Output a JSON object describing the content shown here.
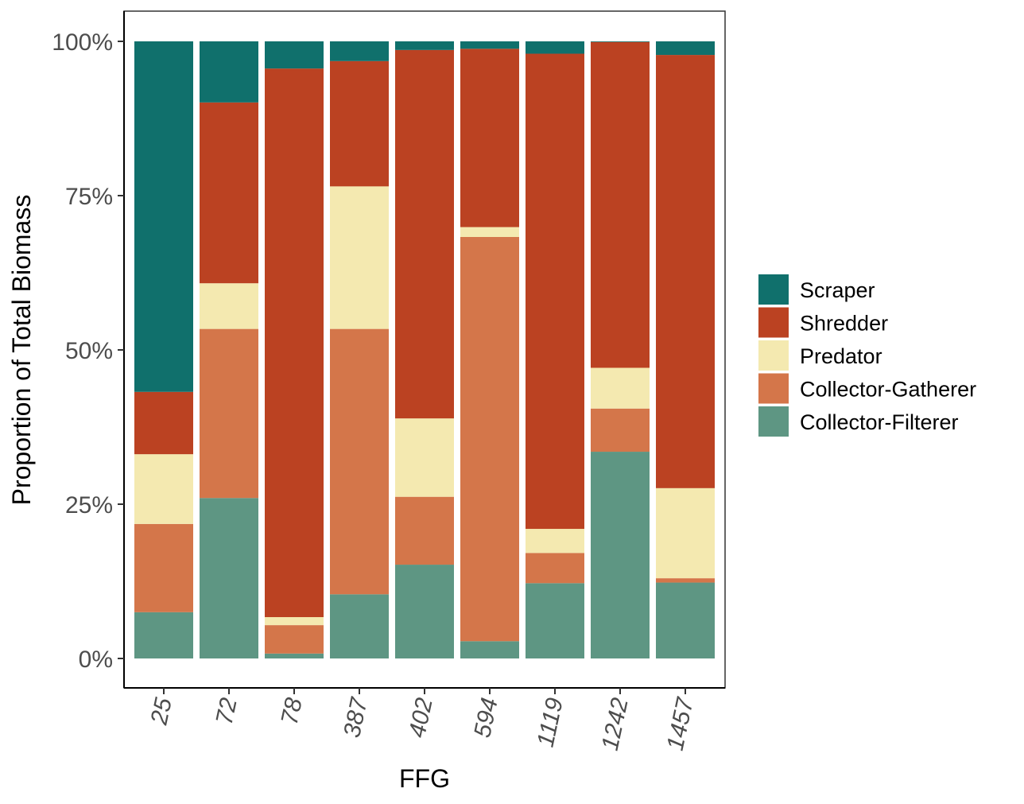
{
  "chart_data": {
    "type": "bar",
    "stacked": "percent",
    "xlabel": "FFG",
    "ylabel": "Proportion of Total Biomass",
    "categories": [
      "25",
      "72",
      "78",
      "387",
      "402",
      "594",
      "1119",
      "1242",
      "1457"
    ],
    "yticks": [
      "0%",
      "25%",
      "50%",
      "75%",
      "100%"
    ],
    "ylim": [
      0,
      1
    ],
    "grid": false,
    "legend_position": "right",
    "series": [
      {
        "name": "Collector-Filterer",
        "color": "#5e9683",
        "values": [
          0.075,
          0.26,
          0.008,
          0.104,
          0.152,
          0.028,
          0.122,
          0.335,
          0.123
        ]
      },
      {
        "name": "Collector-Gatherer",
        "color": "#d4764a",
        "values": [
          0.143,
          0.274,
          0.046,
          0.43,
          0.11,
          0.655,
          0.049,
          0.07,
          0.007
        ]
      },
      {
        "name": "Predator",
        "color": "#f4e9b0",
        "values": [
          0.113,
          0.074,
          0.013,
          0.231,
          0.127,
          0.016,
          0.039,
          0.066,
          0.146
        ]
      },
      {
        "name": "Shredder",
        "color": "#bb4222",
        "values": [
          0.101,
          0.293,
          0.889,
          0.203,
          0.597,
          0.289,
          0.77,
          0.528,
          0.702
        ]
      },
      {
        "name": "Scraper",
        "color": "#10706c",
        "values": [
          0.568,
          0.099,
          0.044,
          0.032,
          0.014,
          0.012,
          0.02,
          0.001,
          0.022
        ]
      }
    ],
    "legend_order": [
      "Scraper",
      "Shredder",
      "Predator",
      "Collector-Gatherer",
      "Collector-Filterer"
    ]
  }
}
